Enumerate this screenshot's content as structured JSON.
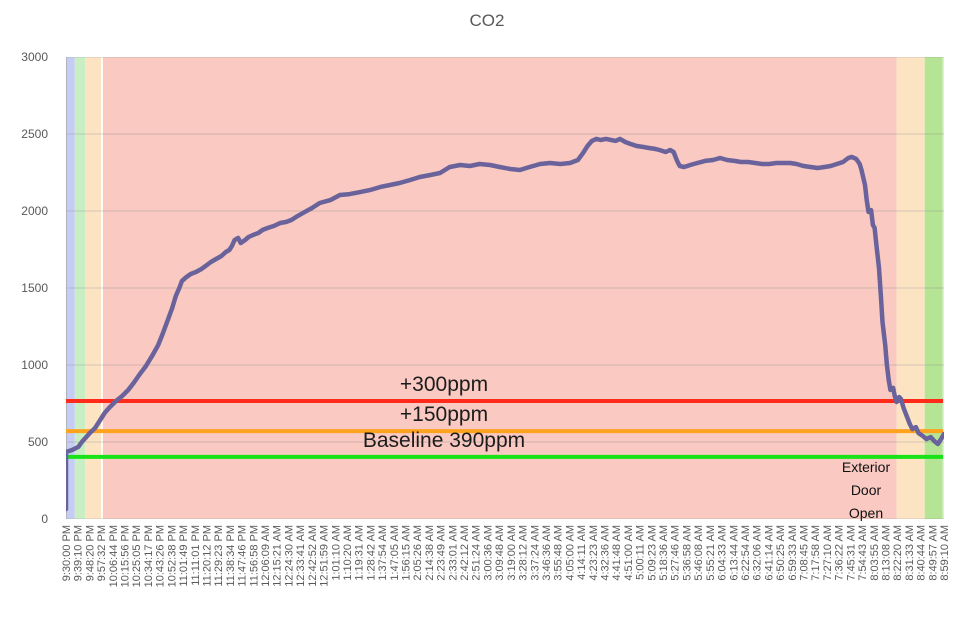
{
  "chart_data": {
    "type": "line",
    "title": "CO2",
    "ylabel": "",
    "xlabel": "",
    "ylim": [
      0,
      3000
    ],
    "yticks": [
      0,
      500,
      1000,
      1500,
      2000,
      2500,
      3000
    ],
    "grid": true,
    "axis_text_color": "#595959",
    "grid_color": "#8c8c8c",
    "x_labels": [
      "9:30:00 PM",
      "9:39:10 PM",
      "9:48:20 PM",
      "9:57:32 PM",
      "10:06:44 PM",
      "10:15:56 PM",
      "10:25:05 PM",
      "10:34:17 PM",
      "10:43:26 PM",
      "10:52:38 PM",
      "11:01:49 PM",
      "11:11:01 PM",
      "11:20:12 PM",
      "11:29:23 PM",
      "11:38:34 PM",
      "11:47:46 PM",
      "11:56:58 PM",
      "12:06:09 AM",
      "12:15:21 AM",
      "12:24:30 AM",
      "12:33:41 AM",
      "12:42:52 AM",
      "12:51:59 AM",
      "1:01:10 AM",
      "1:10:20 AM",
      "1:19:31 AM",
      "1:28:42 AM",
      "1:37:54 AM",
      "1:47:05 AM",
      "1:56:15 AM",
      "2:05:26 AM",
      "2:14:38 AM",
      "2:23:49 AM",
      "2:33:01 AM",
      "2:42:12 AM",
      "2:51:24 AM",
      "3:00:36 AM",
      "3:09:48 AM",
      "3:19:00 AM",
      "3:28:12 AM",
      "3:37:24 AM",
      "3:46:36 AM",
      "3:55:48 AM",
      "4:05:00 AM",
      "4:14:11 AM",
      "4:23:23 AM",
      "4:32:36 AM",
      "4:41:48 AM",
      "4:51:00 AM",
      "5:00:11 AM",
      "5:09:23 AM",
      "5:18:36 AM",
      "5:27:46 AM",
      "5:36:58 AM",
      "5:46:08 AM",
      "5:55:21 AM",
      "6:04:33 AM",
      "6:13:44 AM",
      "6:22:54 AM",
      "6:32:06 AM",
      "6:41:14 AM",
      "6:50:25 AM",
      "6:59:33 AM",
      "7:08:45 AM",
      "7:17:58 AM",
      "7:27:10 AM",
      "7:36:22 AM",
      "7:45:31 AM",
      "7:54:43 AM",
      "8:03:55 AM",
      "8:13:08 AM",
      "8:22:20 AM",
      "8:31:33 AM",
      "8:40:44 AM",
      "8:49:57 AM",
      "8:59:10 AM"
    ],
    "series": [
      {
        "name": "CO2 ppm",
        "color": "#6a639b",
        "points_t_ppm": [
          [
            0,
            65
          ],
          [
            0,
            435
          ],
          [
            0.007,
            448
          ],
          [
            0.014,
            468
          ],
          [
            0.018,
            500
          ],
          [
            0.023,
            532
          ],
          [
            0.027,
            558
          ],
          [
            0.033,
            590
          ],
          [
            0.039,
            643
          ],
          [
            0.044,
            688
          ],
          [
            0.05,
            727
          ],
          [
            0.057,
            766
          ],
          [
            0.064,
            799
          ],
          [
            0.071,
            838
          ],
          [
            0.077,
            883
          ],
          [
            0.084,
            941
          ],
          [
            0.091,
            993
          ],
          [
            0.098,
            1058
          ],
          [
            0.105,
            1130
          ],
          [
            0.11,
            1201
          ],
          [
            0.116,
            1292
          ],
          [
            0.121,
            1370
          ],
          [
            0.125,
            1448
          ],
          [
            0.129,
            1500
          ],
          [
            0.132,
            1545
          ],
          [
            0.137,
            1571
          ],
          [
            0.142,
            1591
          ],
          [
            0.148,
            1604
          ],
          [
            0.154,
            1623
          ],
          [
            0.159,
            1643
          ],
          [
            0.165,
            1669
          ],
          [
            0.171,
            1688
          ],
          [
            0.177,
            1708
          ],
          [
            0.182,
            1734
          ],
          [
            0.186,
            1747
          ],
          [
            0.189,
            1773
          ],
          [
            0.192,
            1812
          ],
          [
            0.196,
            1825
          ],
          [
            0.199,
            1792
          ],
          [
            0.204,
            1812
          ],
          [
            0.208,
            1831
          ],
          [
            0.213,
            1844
          ],
          [
            0.219,
            1857
          ],
          [
            0.224,
            1877
          ],
          [
            0.23,
            1890
          ],
          [
            0.237,
            1903
          ],
          [
            0.244,
            1922
          ],
          [
            0.251,
            1929
          ],
          [
            0.257,
            1942
          ],
          [
            0.264,
            1968
          ],
          [
            0.272,
            1994
          ],
          [
            0.28,
            2019
          ],
          [
            0.289,
            2052
          ],
          [
            0.301,
            2071
          ],
          [
            0.312,
            2104
          ],
          [
            0.323,
            2110
          ],
          [
            0.335,
            2123
          ],
          [
            0.346,
            2136
          ],
          [
            0.358,
            2156
          ],
          [
            0.369,
            2169
          ],
          [
            0.38,
            2182
          ],
          [
            0.392,
            2201
          ],
          [
            0.403,
            2221
          ],
          [
            0.415,
            2234
          ],
          [
            0.426,
            2247
          ],
          [
            0.437,
            2286
          ],
          [
            0.449,
            2299
          ],
          [
            0.46,
            2292
          ],
          [
            0.471,
            2305
          ],
          [
            0.483,
            2299
          ],
          [
            0.494,
            2286
          ],
          [
            0.506,
            2273
          ],
          [
            0.517,
            2266
          ],
          [
            0.528,
            2286
          ],
          [
            0.54,
            2305
          ],
          [
            0.551,
            2312
          ],
          [
            0.563,
            2305
          ],
          [
            0.574,
            2312
          ],
          [
            0.583,
            2331
          ],
          [
            0.589,
            2377
          ],
          [
            0.594,
            2422
          ],
          [
            0.599,
            2455
          ],
          [
            0.604,
            2468
          ],
          [
            0.609,
            2461
          ],
          [
            0.615,
            2468
          ],
          [
            0.621,
            2461
          ],
          [
            0.626,
            2455
          ],
          [
            0.631,
            2468
          ],
          [
            0.637,
            2448
          ],
          [
            0.643,
            2435
          ],
          [
            0.65,
            2422
          ],
          [
            0.657,
            2416
          ],
          [
            0.664,
            2409
          ],
          [
            0.671,
            2403
          ],
          [
            0.676,
            2396
          ],
          [
            0.683,
            2383
          ],
          [
            0.688,
            2396
          ],
          [
            0.692,
            2383
          ],
          [
            0.696,
            2325
          ],
          [
            0.699,
            2292
          ],
          [
            0.704,
            2286
          ],
          [
            0.711,
            2299
          ],
          [
            0.719,
            2312
          ],
          [
            0.728,
            2325
          ],
          [
            0.737,
            2331
          ],
          [
            0.745,
            2344
          ],
          [
            0.753,
            2331
          ],
          [
            0.761,
            2325
          ],
          [
            0.769,
            2318
          ],
          [
            0.777,
            2318
          ],
          [
            0.785,
            2312
          ],
          [
            0.793,
            2305
          ],
          [
            0.801,
            2305
          ],
          [
            0.809,
            2312
          ],
          [
            0.817,
            2312
          ],
          [
            0.825,
            2312
          ],
          [
            0.832,
            2305
          ],
          [
            0.84,
            2292
          ],
          [
            0.848,
            2286
          ],
          [
            0.856,
            2279
          ],
          [
            0.864,
            2286
          ],
          [
            0.871,
            2292
          ],
          [
            0.878,
            2305
          ],
          [
            0.885,
            2318
          ],
          [
            0.891,
            2344
          ],
          [
            0.895,
            2351
          ],
          [
            0.9,
            2338
          ],
          [
            0.904,
            2305
          ],
          [
            0.906,
            2266
          ],
          [
            0.91,
            2169
          ],
          [
            0.912,
            2071
          ],
          [
            0.914,
            1994
          ],
          [
            0.917,
            2006
          ],
          [
            0.919,
            1909
          ],
          [
            0.921,
            1890
          ],
          [
            0.923,
            1779
          ],
          [
            0.926,
            1630
          ],
          [
            0.928,
            1455
          ],
          [
            0.93,
            1279
          ],
          [
            0.933,
            1130
          ],
          [
            0.935,
            1000
          ],
          [
            0.937,
            903
          ],
          [
            0.939,
            838
          ],
          [
            0.942,
            851
          ],
          [
            0.944,
            799
          ],
          [
            0.946,
            760
          ],
          [
            0.949,
            792
          ],
          [
            0.951,
            779
          ],
          [
            0.954,
            721
          ],
          [
            0.958,
            662
          ],
          [
            0.961,
            617
          ],
          [
            0.964,
            584
          ],
          [
            0.968,
            597
          ],
          [
            0.971,
            558
          ],
          [
            0.976,
            539
          ],
          [
            0.98,
            519
          ],
          [
            0.985,
            532
          ],
          [
            0.989,
            506
          ],
          [
            0.993,
            487
          ],
          [
            0.996,
            513
          ],
          [
            1,
            552
          ]
        ]
      }
    ],
    "ref_lines": [
      {
        "label": "+300ppm",
        "value_ppm": 690,
        "display_ppm": 766,
        "color": "#ff2a1a"
      },
      {
        "label": "+150ppm",
        "value_ppm": 540,
        "display_ppm": 571,
        "color": "#ffa21d"
      },
      {
        "label": "Baseline 390ppm",
        "value_ppm": 390,
        "display_ppm": 403,
        "color": "#17e317"
      }
    ],
    "bg_bands": [
      {
        "x0": 0.0,
        "x1": 0.01,
        "color": "#c5cdf4"
      },
      {
        "x0": 0.01,
        "x1": 0.022,
        "color": "#c9eec4"
      },
      {
        "x0": 0.022,
        "x1": 0.04,
        "color": "#fce4c3"
      },
      {
        "x0": 0.042,
        "x1": 0.946,
        "color": "#f9c9c2"
      },
      {
        "x0": 0.946,
        "x1": 0.978,
        "color": "#fce4c3"
      },
      {
        "x0": 0.978,
        "x1": 0.9985,
        "color": "#b4e494"
      },
      {
        "x0": 0.9985,
        "x1": 1.0,
        "color": "#daf3d3"
      }
    ],
    "annotations": [
      {
        "lines": [
          "Exterior",
          "Door",
          "Open"
        ]
      }
    ],
    "legend": "none"
  }
}
